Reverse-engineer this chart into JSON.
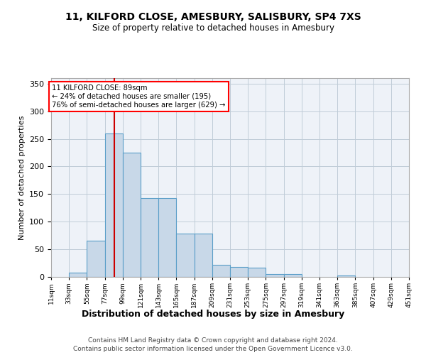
{
  "title": "11, KILFORD CLOSE, AMESBURY, SALISBURY, SP4 7XS",
  "subtitle": "Size of property relative to detached houses in Amesbury",
  "xlabel": "Distribution of detached houses by size in Amesbury",
  "ylabel": "Number of detached properties",
  "bin_labels": [
    "11sqm",
    "33sqm",
    "55sqm",
    "77sqm",
    "99sqm",
    "121sqm",
    "143sqm",
    "165sqm",
    "187sqm",
    "209sqm",
    "231sqm",
    "253sqm",
    "275sqm",
    "297sqm",
    "319sqm",
    "341sqm",
    "363sqm",
    "385sqm",
    "407sqm",
    "429sqm",
    "451sqm"
  ],
  "bin_edges": [
    11,
    33,
    55,
    77,
    99,
    121,
    143,
    165,
    187,
    209,
    231,
    253,
    275,
    297,
    319,
    341,
    363,
    385,
    407,
    429,
    451
  ],
  "bar_heights": [
    0,
    8,
    65,
    260,
    225,
    143,
    143,
    78,
    78,
    22,
    18,
    17,
    5,
    5,
    0,
    0,
    3,
    0,
    0,
    0,
    1
  ],
  "bar_color": "#c8d8e8",
  "bar_edgecolor": "#5a9ec8",
  "grid_color": "#c0ccd8",
  "background_color": "#eef2f8",
  "property_size": 89,
  "property_label": "11 KILFORD CLOSE: 89sqm",
  "annotation_line1": "← 24% of detached houses are smaller (195)",
  "annotation_line2": "76% of semi-detached houses are larger (629) →",
  "vline_color": "#cc0000",
  "ylim": [
    0,
    360
  ],
  "yticks": [
    0,
    50,
    100,
    150,
    200,
    250,
    300,
    350
  ],
  "footer1": "Contains HM Land Registry data © Crown copyright and database right 2024.",
  "footer2": "Contains public sector information licensed under the Open Government Licence v3.0."
}
